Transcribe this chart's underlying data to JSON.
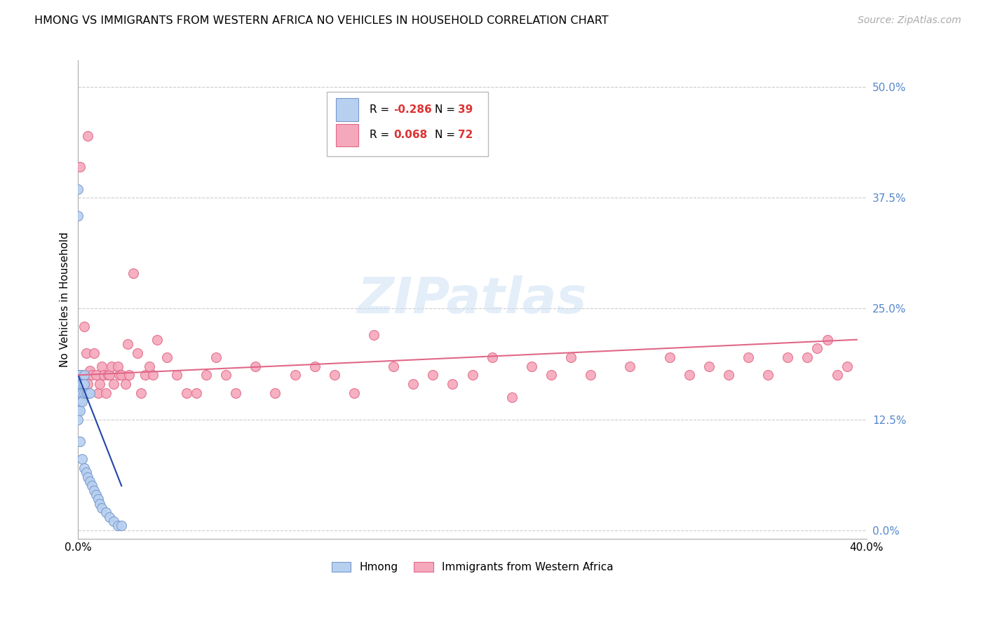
{
  "title": "HMONG VS IMMIGRANTS FROM WESTERN AFRICA NO VEHICLES IN HOUSEHOLD CORRELATION CHART",
  "source": "Source: ZipAtlas.com",
  "ylabel": "No Vehicles in Household",
  "yticks": [
    0.0,
    0.125,
    0.25,
    0.375,
    0.5
  ],
  "ytick_labels": [
    "0.0%",
    "12.5%",
    "25.0%",
    "37.5%",
    "50.0%"
  ],
  "xmin": 0.0,
  "xmax": 0.4,
  "ymin": -0.01,
  "ymax": 0.53,
  "hmong_color": "#b8d0f0",
  "western_africa_color": "#f5a8bc",
  "hmong_edge_color": "#7799cc",
  "western_africa_edge_color": "#e06888",
  "trendline_hmong_color": "#2244aa",
  "trendline_wa_color": "#e06888",
  "title_fontsize": 11.5,
  "axis_label_fontsize": 11,
  "tick_fontsize": 11,
  "source_fontsize": 10,
  "marker_size": 100,
  "hmong_x": [
    0.0,
    0.0,
    0.0,
    0.0,
    0.0,
    0.0,
    0.0,
    0.0,
    0.001,
    0.001,
    0.001,
    0.001,
    0.001,
    0.001,
    0.002,
    0.002,
    0.002,
    0.002,
    0.003,
    0.003,
    0.003,
    0.003,
    0.004,
    0.004,
    0.005,
    0.005,
    0.006,
    0.006,
    0.007,
    0.008,
    0.009,
    0.01,
    0.011,
    0.012,
    0.014,
    0.016,
    0.018,
    0.02,
    0.022
  ],
  "hmong_y": [
    0.385,
    0.355,
    0.175,
    0.165,
    0.155,
    0.145,
    0.135,
    0.125,
    0.175,
    0.165,
    0.155,
    0.145,
    0.135,
    0.1,
    0.165,
    0.155,
    0.145,
    0.08,
    0.175,
    0.165,
    0.155,
    0.07,
    0.155,
    0.065,
    0.155,
    0.06,
    0.155,
    0.055,
    0.05,
    0.045,
    0.04,
    0.035,
    0.03,
    0.025,
    0.02,
    0.015,
    0.01,
    0.005,
    0.005
  ],
  "wa_x": [
    0.001,
    0.002,
    0.003,
    0.003,
    0.004,
    0.005,
    0.005,
    0.006,
    0.007,
    0.008,
    0.009,
    0.01,
    0.011,
    0.012,
    0.013,
    0.014,
    0.015,
    0.016,
    0.017,
    0.018,
    0.02,
    0.021,
    0.022,
    0.024,
    0.025,
    0.026,
    0.028,
    0.03,
    0.032,
    0.034,
    0.036,
    0.038,
    0.04,
    0.045,
    0.05,
    0.055,
    0.06,
    0.065,
    0.07,
    0.075,
    0.08,
    0.09,
    0.1,
    0.11,
    0.12,
    0.13,
    0.14,
    0.15,
    0.16,
    0.17,
    0.18,
    0.19,
    0.2,
    0.21,
    0.22,
    0.23,
    0.24,
    0.25,
    0.26,
    0.28,
    0.3,
    0.31,
    0.32,
    0.33,
    0.34,
    0.35,
    0.36,
    0.37,
    0.375,
    0.38,
    0.385,
    0.39
  ],
  "wa_y": [
    0.41,
    0.175,
    0.23,
    0.16,
    0.2,
    0.445,
    0.165,
    0.18,
    0.175,
    0.2,
    0.175,
    0.155,
    0.165,
    0.185,
    0.175,
    0.155,
    0.175,
    0.175,
    0.185,
    0.165,
    0.185,
    0.175,
    0.175,
    0.165,
    0.21,
    0.175,
    0.29,
    0.2,
    0.155,
    0.175,
    0.185,
    0.175,
    0.215,
    0.195,
    0.175,
    0.155,
    0.155,
    0.175,
    0.195,
    0.175,
    0.155,
    0.185,
    0.155,
    0.175,
    0.185,
    0.175,
    0.155,
    0.22,
    0.185,
    0.165,
    0.175,
    0.165,
    0.175,
    0.195,
    0.15,
    0.185,
    0.175,
    0.195,
    0.175,
    0.185,
    0.195,
    0.175,
    0.185,
    0.175,
    0.195,
    0.175,
    0.195,
    0.195,
    0.205,
    0.215,
    0.175,
    0.185
  ],
  "hmong_trend_x": [
    0.0,
    0.022
  ],
  "hmong_trend_y": [
    0.175,
    0.05
  ],
  "wa_trend_x": [
    0.0,
    0.395
  ],
  "wa_trend_y": [
    0.175,
    0.215
  ]
}
